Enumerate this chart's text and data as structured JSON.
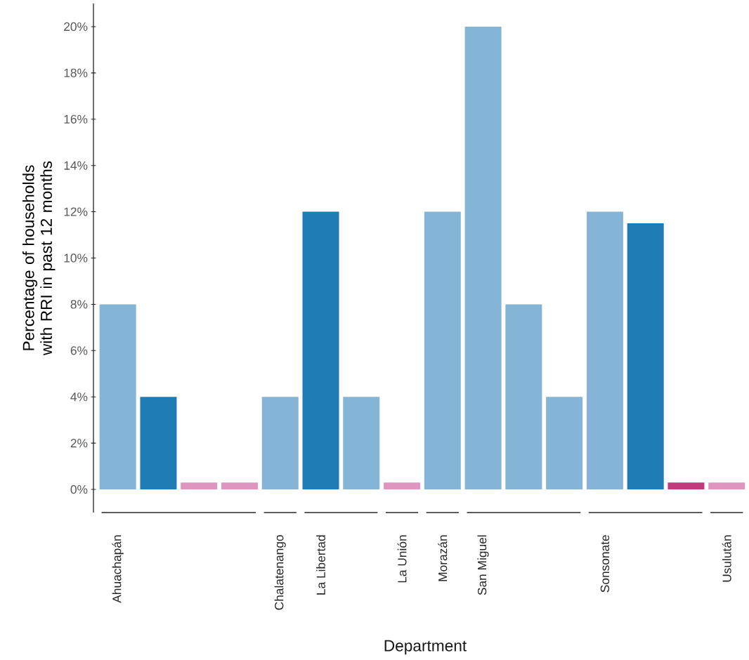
{
  "chart_data": {
    "type": "bar",
    "xlabel": "Department",
    "ylabel": "Percentage of households with RRI in past 12 months",
    "categories": [
      "Ahuachapán",
      null,
      null,
      null,
      "Chalatenango",
      "La Libertad",
      null,
      "La Unión",
      "Morazán",
      "San Miguel",
      null,
      null,
      "Sonsonate",
      null,
      null,
      "Usulután"
    ],
    "values": [
      8,
      4,
      0.3,
      0.3,
      4,
      12,
      4,
      0.3,
      12,
      20,
      8,
      4,
      12,
      11.5,
      0.3,
      0.3
    ],
    "colors": [
      "#84b5d6",
      "#1f7bb3",
      "#de95bf",
      "#de95bf",
      "#84b5d6",
      "#1f7bb3",
      "#84b5d6",
      "#de95bf",
      "#84b5d6",
      "#84b5d6",
      "#84b5d6",
      "#84b5d6",
      "#84b5d6",
      "#1f7bb3",
      "#c03a7e",
      "#de95bf"
    ],
    "ylim": [
      -1,
      21
    ],
    "yticks": [
      {
        "value": 0,
        "label": "0%"
      },
      {
        "value": 2,
        "label": "2%"
      },
      {
        "value": 4,
        "label": "4%"
      },
      {
        "value": 6,
        "label": "6%"
      },
      {
        "value": 8,
        "label": "8%"
      },
      {
        "value": 10,
        "label": "10%"
      },
      {
        "value": 12,
        "label": "12%"
      },
      {
        "value": 14,
        "label": "14%"
      },
      {
        "value": 16,
        "label": "16%"
      },
      {
        "value": 18,
        "label": "18%"
      },
      {
        "value": 20,
        "label": "20%"
      }
    ],
    "grid": false
  }
}
